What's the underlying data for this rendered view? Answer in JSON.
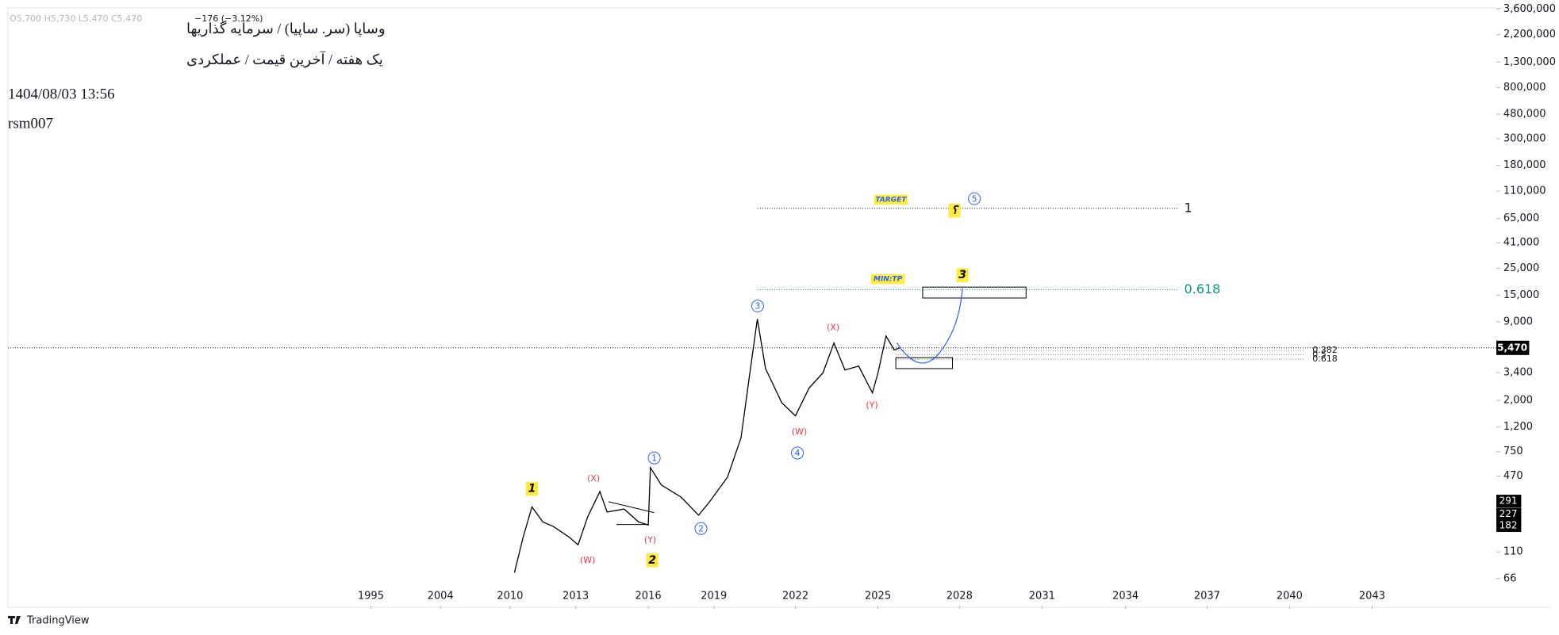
{
  "chart_data": {
    "type": "line",
    "log_scale": true,
    "header": {
      "ohlc": "O5,700 H5,730 L5,470 C5,470",
      "change": "−176 (−3.12%)"
    },
    "title": "وساپا (سر. ساپیا) / سرمایه گذاریها",
    "subtitle": "یک هفته / آخرین قیمت / عملکردی",
    "date": "1404/08/03 13:56",
    "author": "rsm007",
    "brand": "TradingView",
    "series": [
      {
        "name": "وساپا",
        "color": "#000000",
        "x": [
          2010.2,
          2010.6,
          2011.0,
          2011.5,
          2012.0,
          2012.7,
          2013.1,
          2013.5,
          2014.0,
          2014.3,
          2015.0,
          2015.6,
          2016.0,
          2016.1,
          2016.6,
          2017.5,
          2018.3,
          2018.8,
          2019.5,
          2020.0,
          2020.3,
          2020.6,
          2020.9,
          2021.5,
          2022.0,
          2022.5,
          2023.0,
          2023.4,
          2023.8,
          2024.3,
          2024.8,
          2025.0,
          2025.3,
          2025.6,
          2025.8
        ],
        "values": [
          74,
          146,
          260,
          195,
          178,
          146,
          126,
          216,
          349,
          236,
          250,
          195,
          184,
          552,
          396,
          314,
          222,
          287,
          459,
          978,
          3080,
          9500,
          3680,
          1910,
          1490,
          2540,
          3380,
          5990,
          3580,
          3860,
          2310,
          3380,
          6860,
          5250,
          5470
        ]
      }
    ],
    "ylim": [
      39,
      3670000
    ],
    "yticks": [
      {
        "value": 3600000,
        "label": "3,600,000"
      },
      {
        "value": 2200000,
        "label": "2,200,000"
      },
      {
        "value": 1300000,
        "label": "1,300,000"
      },
      {
        "value": 800000,
        "label": "800,000"
      },
      {
        "value": 480000,
        "label": "480,000"
      },
      {
        "value": 300000,
        "label": "300,000"
      },
      {
        "value": 180000,
        "label": "180,000"
      },
      {
        "value": 110000,
        "label": "110,000"
      },
      {
        "value": 65000,
        "label": "65,000"
      },
      {
        "value": 41000,
        "label": "41,000"
      },
      {
        "value": 25000,
        "label": "25,000"
      },
      {
        "value": 15000,
        "label": "15,000"
      },
      {
        "value": 9000,
        "label": "9,000"
      },
      {
        "value": 3400,
        "label": "3,400"
      },
      {
        "value": 2000,
        "label": "2,000"
      },
      {
        "value": 1200,
        "label": "1,200"
      },
      750,
      470,
      110,
      66
    ],
    "xticks": [
      1995,
      2004,
      2010,
      2013,
      2016,
      2019,
      2022,
      2025,
      2028,
      2031,
      2034,
      2037,
      2040,
      2043
    ],
    "last_price": {
      "value": 5470,
      "label": "5,470"
    },
    "price_marks": [
      291,
      227,
      182
    ],
    "fib_upper": [
      {
        "level": 1,
        "price": 79000,
        "color": "#131722"
      },
      {
        "level": 0.618,
        "price": 16650,
        "color": "#089981"
      }
    ],
    "fib_lower": [
      {
        "level": 0.382,
        "price": 5200
      },
      {
        "level": 0.5,
        "price": 4800
      },
      {
        "level": 0.618,
        "price": 4400
      }
    ],
    "wave_labels": {
      "primary": [
        "1",
        "2",
        "3",
        "؟"
      ],
      "sub": [
        "(W)",
        "(X)",
        "(Y)",
        "(W)",
        "(X)",
        "(Y)"
      ],
      "circled": [
        "1",
        "2",
        "3",
        "4",
        "5"
      ],
      "notes": [
        "TARGET",
        "MIN:TP"
      ]
    }
  }
}
